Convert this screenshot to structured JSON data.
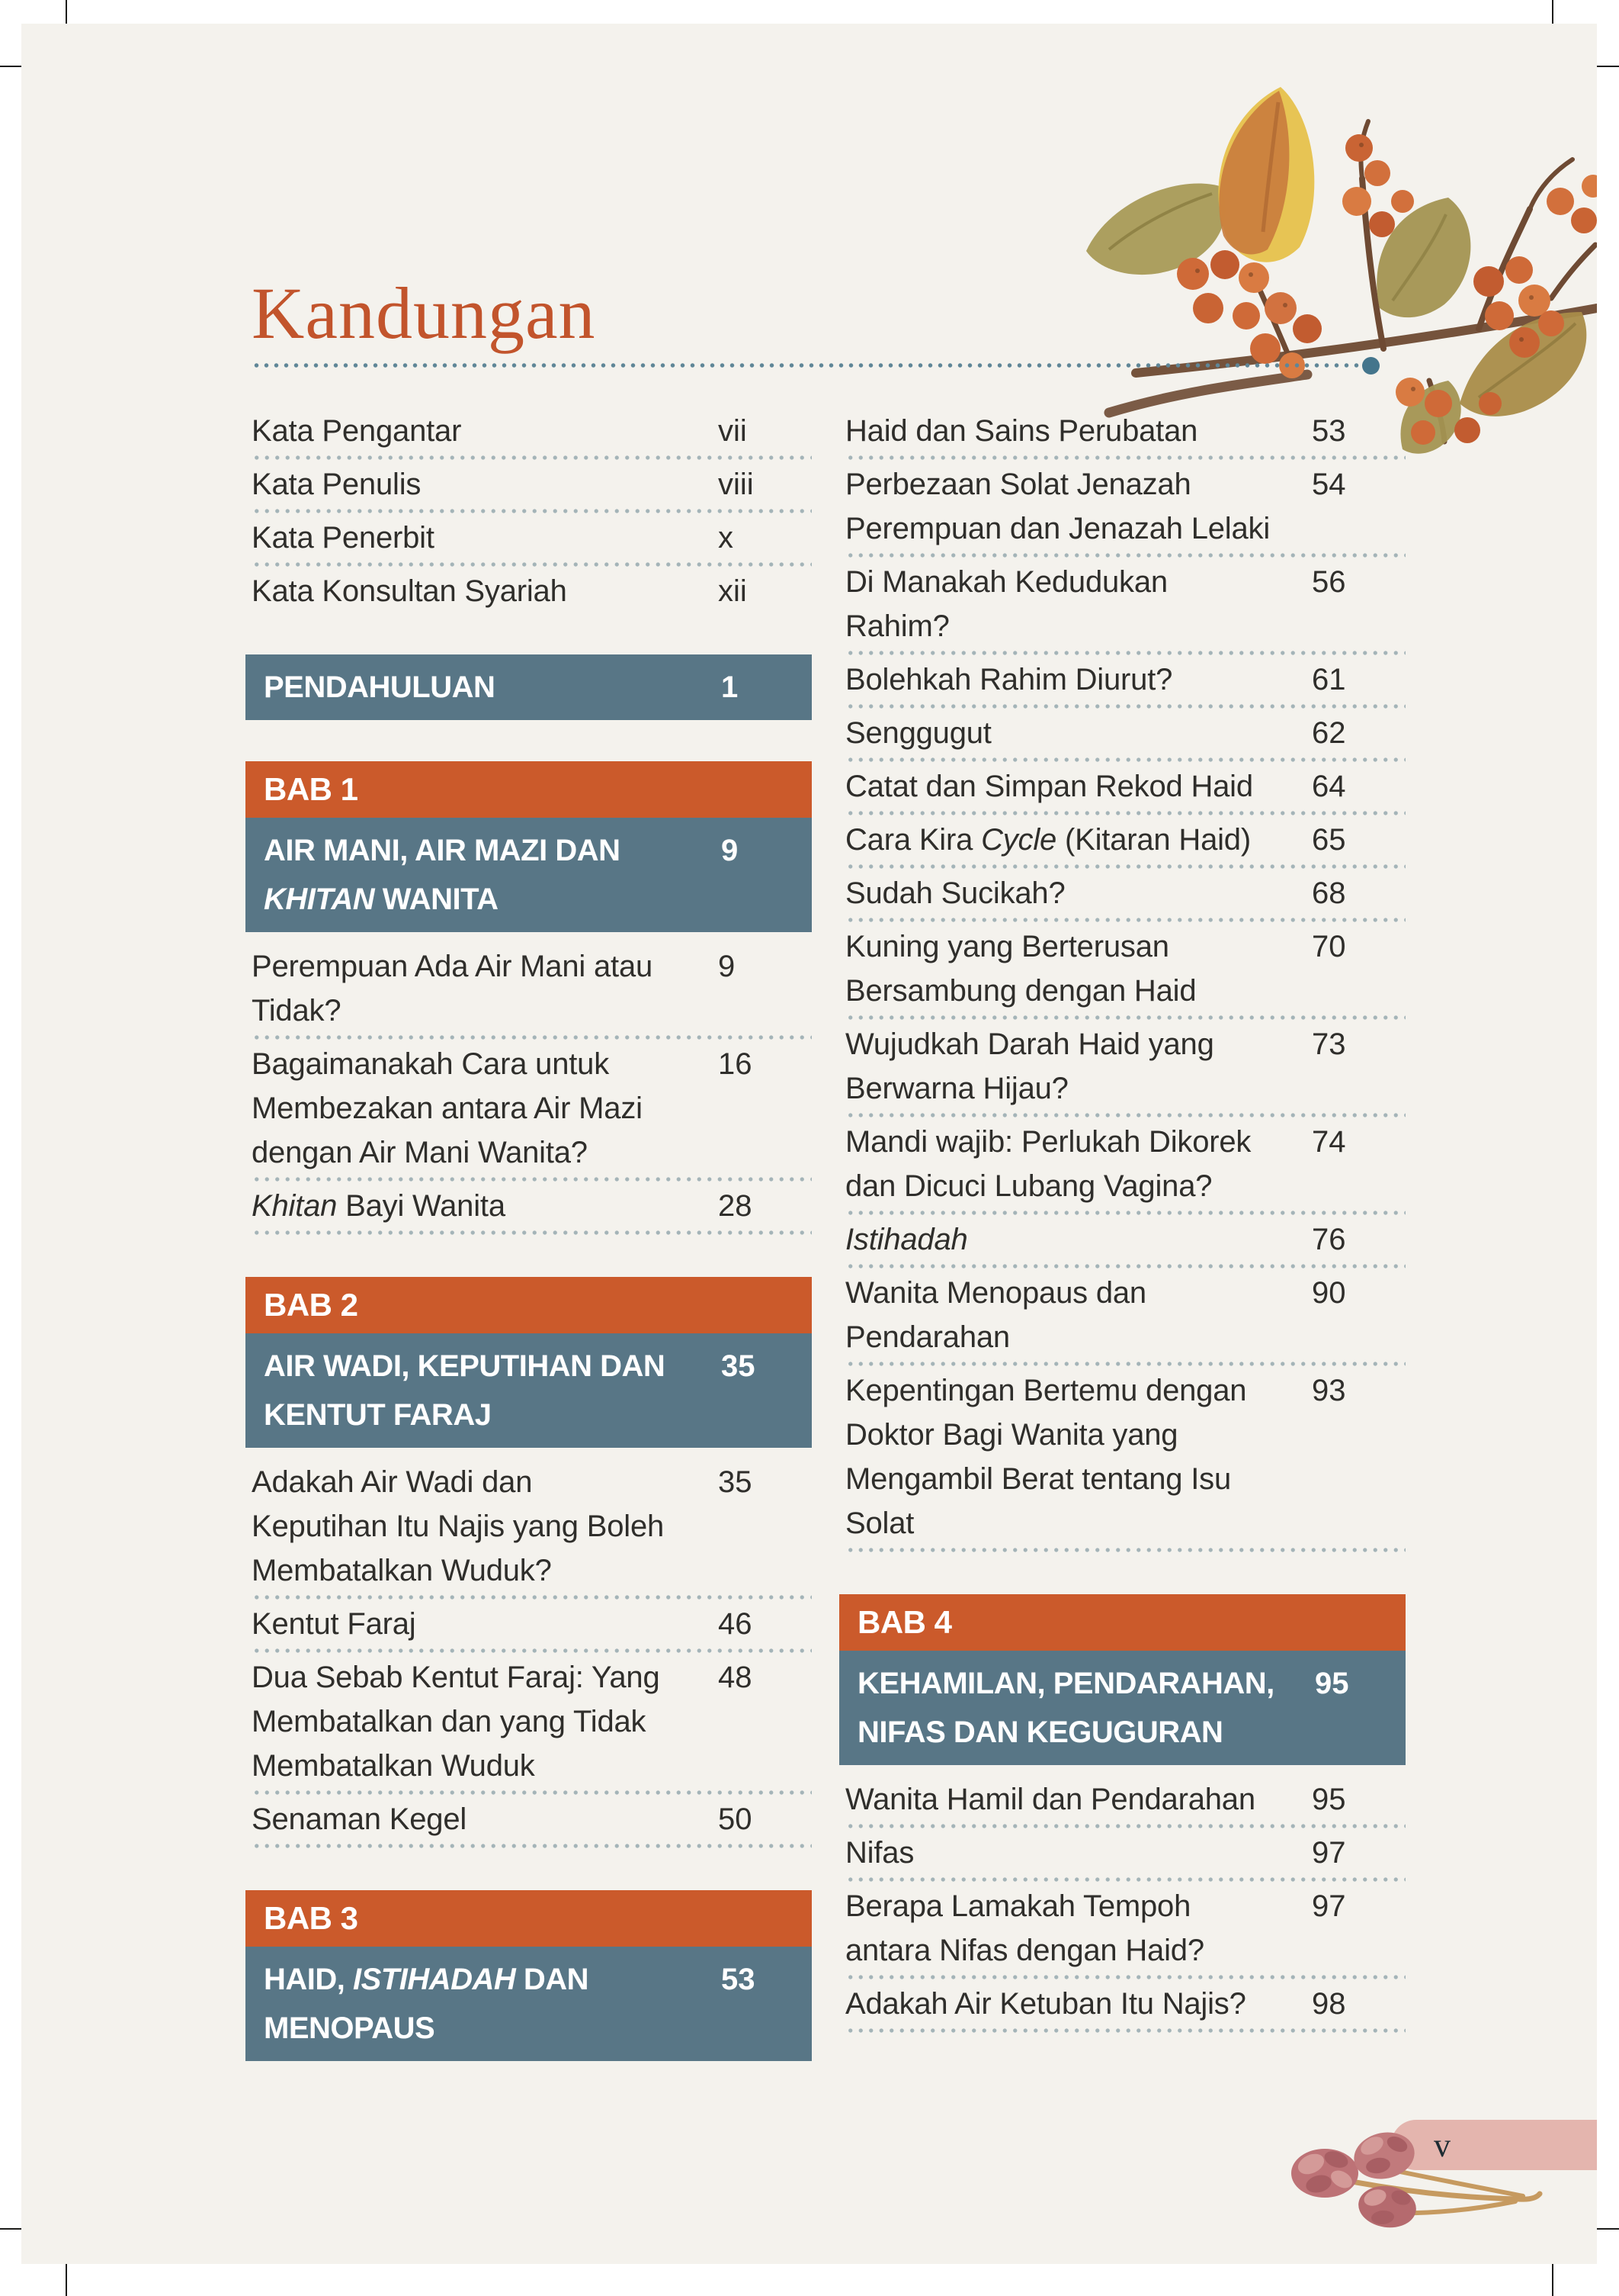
{
  "page": {
    "title": "Kandungan",
    "number": "v",
    "colors": {
      "background": "#f4f2ed",
      "title_orange": "#c2542c",
      "bab_orange": "#cb5a2b",
      "chapter_teal": "#587686",
      "dot_gray": "#a4b4b8",
      "rule_teal": "#44758c",
      "footer_pink": "#e4b5ae",
      "body_ink": "#2f2e2b"
    }
  },
  "toc": {
    "left": [
      {
        "type": "entry",
        "text": [
          "Kata Pengantar"
        ],
        "page": "vii",
        "sep": true
      },
      {
        "type": "entry",
        "text": [
          "Kata Penulis"
        ],
        "page": "viii",
        "sep": true
      },
      {
        "type": "entry",
        "text": [
          "Kata Penerbit"
        ],
        "page": "x",
        "sep": true
      },
      {
        "type": "entry",
        "text": [
          "Kata Konsultan Syariah"
        ],
        "page": "xii",
        "sep": false
      },
      {
        "type": "section",
        "text": [
          "PENDAHULUAN"
        ],
        "page": "1"
      },
      {
        "type": "chapter",
        "bab": "BAB 1",
        "text": [
          "AIR MANI, AIR MAZI DAN ",
          {
            "i": "KHITAN"
          },
          " WANITA"
        ],
        "page": "9"
      },
      {
        "type": "entry",
        "text": [
          "Perempuan Ada Air Mani atau\nTidak?"
        ],
        "page": "9",
        "sep": true
      },
      {
        "type": "entry",
        "text": [
          "Bagaimanakah Cara untuk\nMembezakan antara Air Mazi\ndengan Air Mani Wanita?"
        ],
        "page": "16",
        "sep": true
      },
      {
        "type": "entry",
        "text": [
          {
            "i": "Khitan"
          },
          " Bayi Wanita"
        ],
        "page": "28",
        "sep": true
      },
      {
        "type": "chapter",
        "bab": "BAB 2",
        "text": [
          "AIR WADI, KEPUTIHAN DAN KENTUT FARAJ"
        ],
        "page": "35"
      },
      {
        "type": "entry",
        "text": [
          "Adakah Air Wadi dan\nKeputihan Itu Najis yang Boleh\nMembatalkan Wuduk?"
        ],
        "page": "35",
        "sep": true
      },
      {
        "type": "entry",
        "text": [
          "Kentut Faraj"
        ],
        "page": "46",
        "sep": true
      },
      {
        "type": "entry",
        "text": [
          "Dua Sebab Kentut Faraj: Yang\nMembatalkan dan yang Tidak\nMembatalkan Wuduk"
        ],
        "page": "48",
        "sep": true
      },
      {
        "type": "entry",
        "text": [
          "Senaman Kegel"
        ],
        "page": "50",
        "sep": true
      },
      {
        "type": "chapter",
        "bab": "BAB 3",
        "text": [
          "HAID, ",
          {
            "i": "ISTIHADAH"
          },
          " DAN MENOPAUS"
        ],
        "page": "53"
      }
    ],
    "right": [
      {
        "type": "entry",
        "text": [
          "Haid dan Sains Perubatan"
        ],
        "page": "53",
        "sep": true
      },
      {
        "type": "entry",
        "text": [
          "Perbezaan Solat Jenazah\nPerempuan dan Jenazah Lelaki"
        ],
        "page": "54",
        "sep": true
      },
      {
        "type": "entry",
        "text": [
          "Di Manakah Kedudukan\nRahim?"
        ],
        "page": "56",
        "sep": true
      },
      {
        "type": "entry",
        "text": [
          "Bolehkah Rahim Diurut?"
        ],
        "page": "61",
        "sep": true
      },
      {
        "type": "entry",
        "text": [
          "Senggugut"
        ],
        "page": "62",
        "sep": true
      },
      {
        "type": "entry",
        "text": [
          "Catat dan Simpan Rekod Haid"
        ],
        "page": "64",
        "sep": true
      },
      {
        "type": "entry",
        "text": [
          "Cara Kira ",
          {
            "i": "Cycle"
          },
          " (Kitaran Haid)"
        ],
        "page": "65",
        "sep": true
      },
      {
        "type": "entry",
        "text": [
          "Sudah Sucikah?"
        ],
        "page": "68",
        "sep": true
      },
      {
        "type": "entry",
        "text": [
          "Kuning yang Berterusan\nBersambung dengan Haid"
        ],
        "page": "70",
        "sep": true
      },
      {
        "type": "entry",
        "text": [
          "Wujudkah Darah Haid yang\nBerwarna Hijau?"
        ],
        "page": "73",
        "sep": true
      },
      {
        "type": "entry",
        "text": [
          "Mandi wajib: Perlukah Dikorek\ndan Dicuci Lubang Vagina?"
        ],
        "page": "74",
        "sep": true
      },
      {
        "type": "entry",
        "text": [
          {
            "i": "Istihadah"
          }
        ],
        "page": "76",
        "sep": true
      },
      {
        "type": "entry",
        "text": [
          "Wanita Menopaus dan\nPendarahan"
        ],
        "page": "90",
        "sep": true
      },
      {
        "type": "entry",
        "text": [
          "Kepentingan Bertemu dengan\nDoktor Bagi Wanita yang\nMengambil Berat tentang Isu\nSolat"
        ],
        "page": "93",
        "sep": true
      },
      {
        "type": "chapter",
        "bab": "BAB 4",
        "text": [
          "KEHAMILAN, PENDARAHAN, NIFAS DAN KEGUGURAN"
        ],
        "page": "95"
      },
      {
        "type": "entry",
        "text": [
          "Wanita Hamil dan Pendarahan"
        ],
        "page": "95",
        "sep": true
      },
      {
        "type": "entry",
        "text": [
          "Nifas"
        ],
        "page": "97",
        "sep": true
      },
      {
        "type": "entry",
        "text": [
          "Berapa Lamakah Tempoh\nantara Nifas dengan Haid?"
        ],
        "page": "97",
        "sep": true
      },
      {
        "type": "entry",
        "text": [
          "Adakah Air Ketuban Itu Najis?"
        ],
        "page": "98",
        "sep": true
      }
    ]
  }
}
